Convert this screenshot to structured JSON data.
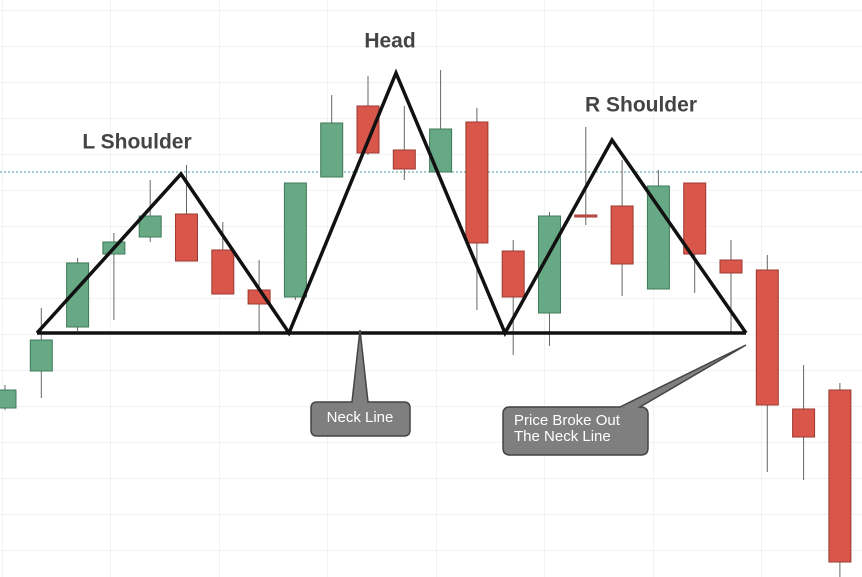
{
  "chart_data": {
    "type": "candlestick",
    "annotations": {
      "left_shoulder": "L Shoulder",
      "head": "Head",
      "right_shoulder": "R Shoulder",
      "neck_line": "Neck Line",
      "breakout": [
        "Price Broke Out",
        "The Neck Line"
      ]
    },
    "categories": [
      null,
      null,
      null,
      null,
      null,
      null,
      null,
      null,
      null,
      null,
      null,
      null,
      null,
      null,
      null,
      null,
      null,
      null,
      null,
      null,
      null,
      null,
      null,
      null,
      null
    ],
    "open": [
      169,
      206,
      250,
      323,
      340,
      363,
      327,
      287,
      280,
      400,
      471,
      427,
      405,
      455,
      326,
      264,
      362,
      371,
      288,
      394,
      317,
      307,
      168,
      187,
      0
    ],
    "high": [
      192,
      269,
      319,
      344,
      397,
      412,
      355,
      317,
      394,
      482,
      501,
      471,
      507,
      469,
      337,
      365,
      450,
      417,
      407,
      394,
      337,
      322,
      212,
      194,
      125
    ],
    "low": [
      167,
      179,
      246,
      257,
      335,
      316,
      283,
      245,
      277,
      400,
      422,
      397,
      405,
      267,
      222,
      231,
      352,
      281,
      288,
      284,
      244,
      105,
      97,
      0,
      0
    ],
    "close": [
      187,
      237,
      314,
      335,
      361,
      316,
      283,
      273,
      394,
      454,
      424,
      408,
      448,
      334,
      280,
      361,
      360,
      313,
      391,
      323,
      304,
      172,
      140,
      15,
      125
    ],
    "up_color": "#67a985",
    "down_color": "#d9564a",
    "ylim": [
      0,
      577
    ]
  }
}
